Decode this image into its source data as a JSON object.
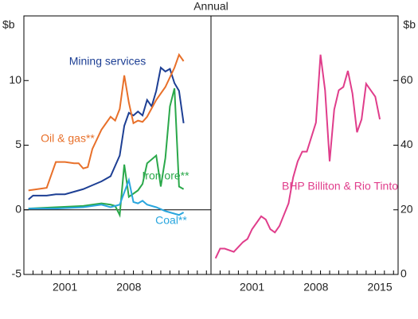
{
  "title": "Annual",
  "chart_data": [
    {
      "type": "line",
      "y_label": "$b",
      "xlim": [
        1996.5,
        2017
      ],
      "xticks": [
        2001,
        2008
      ],
      "ylim": [
        -5,
        15
      ],
      "yticks": [
        -5,
        0,
        5,
        10
      ],
      "series": [
        {
          "name": "Mining services",
          "color": "#1d3f94",
          "x": [
            1997,
            1997.5,
            1998,
            1999,
            2000,
            2001,
            2002,
            2003,
            2004,
            2005,
            2006,
            2007,
            2007.5,
            2008,
            2008.5,
            2009,
            2009.5,
            2010,
            2010.5,
            2011,
            2011.5,
            2012,
            2012.5,
            2013,
            2013.5,
            2014
          ],
          "values": [
            0.8,
            1.1,
            1.1,
            1.1,
            1.2,
            1.2,
            1.4,
            1.6,
            1.9,
            2.2,
            2.6,
            4.2,
            6.5,
            7.5,
            7.3,
            7.6,
            7.3,
            8.5,
            8.0,
            9.2,
            11.0,
            10.7,
            10.9,
            9.8,
            9.2,
            6.7
          ]
        },
        {
          "name": "Oil & gas**",
          "color": "#e8702a",
          "x": [
            1997,
            1998,
            1999,
            2000,
            2001,
            2002,
            2002.5,
            2003,
            2003.5,
            2004,
            2005,
            2006,
            2006.5,
            2007,
            2007.5,
            2008,
            2008.5,
            2009,
            2009.5,
            2010,
            2011,
            2012,
            2013,
            2013.5,
            2014
          ],
          "values": [
            1.5,
            1.6,
            1.7,
            3.7,
            3.7,
            3.6,
            3.6,
            3.2,
            3.3,
            4.7,
            6.2,
            7.2,
            6.9,
            7.8,
            10.4,
            8.3,
            6.7,
            6.9,
            6.8,
            7.2,
            8.5,
            9.5,
            11.0,
            12.0,
            11.5
          ]
        },
        {
          "name": "Iron ore**",
          "color": "#2aa84a",
          "x": [
            1997,
            2000,
            2003,
            2005,
            2006,
            2006.5,
            2007,
            2007.5,
            2008,
            2009,
            2009.5,
            2010,
            2011,
            2011.5,
            2012,
            2012.5,
            2013,
            2013.5,
            2014
          ],
          "values": [
            0.1,
            0.2,
            0.3,
            0.5,
            0.4,
            0.3,
            -0.4,
            3.5,
            1.0,
            1.5,
            2.0,
            3.6,
            4.2,
            1.8,
            4.0,
            8.0,
            9.4,
            1.8,
            1.6
          ]
        },
        {
          "name": "Coal**",
          "color": "#29a6de",
          "x": [
            1997,
            2000,
            2003,
            2005,
            2006,
            2007,
            2008,
            2008.5,
            2009,
            2009.5,
            2010,
            2011,
            2012,
            2013,
            2013.5,
            2014
          ],
          "values": [
            0.1,
            0.1,
            0.2,
            0.4,
            0.2,
            0.4,
            2.3,
            0.6,
            0.5,
            0.7,
            0.4,
            0.2,
            -0.1,
            -0.3,
            -0.4,
            -0.2
          ]
        }
      ]
    },
    {
      "type": "line",
      "y_label": "$b",
      "xlim": [
        1996.5,
        2017
      ],
      "xticks": [
        2001,
        2008,
        2015
      ],
      "ylim": [
        0,
        80
      ],
      "yticks": [
        0,
        20,
        40,
        60
      ],
      "series": [
        {
          "name": "BHP Billiton & Rio Tinto",
          "color": "#e03d8b",
          "x": [
            1997,
            1997.5,
            1998,
            1999,
            2000,
            2000.5,
            2001,
            2002,
            2002.5,
            2003,
            2003.5,
            2004,
            2005,
            2005.5,
            2006,
            2006.5,
            2007,
            2008,
            2008.5,
            2009,
            2009.5,
            2010,
            2010.5,
            2011,
            2011.5,
            2012,
            2012.5,
            2013,
            2013.5,
            2014,
            2014.5,
            2015
          ],
          "values": [
            5,
            8,
            8,
            7,
            10,
            11,
            14,
            18,
            17,
            14,
            13,
            15,
            22,
            30,
            35,
            38,
            38,
            47,
            68,
            57,
            35,
            51,
            57,
            58,
            63,
            56,
            44,
            48,
            59,
            57,
            55,
            48
          ]
        }
      ]
    }
  ]
}
